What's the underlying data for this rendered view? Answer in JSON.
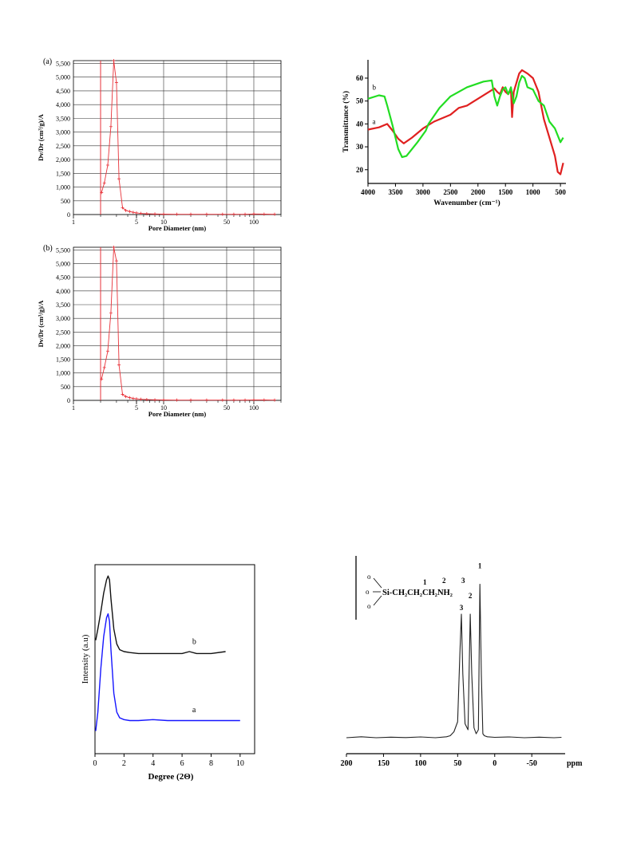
{
  "chart_data": [
    {
      "id": "pore-a",
      "type": "line",
      "panel_label": "(a)",
      "xlabel": "Pore Diameter (nm)",
      "ylabel": "Dv/Dr (cm³/g)/A",
      "xscale": "log",
      "xlim": [
        1,
        200
      ],
      "ylim": [
        0,
        5600
      ],
      "xtick_labels": [
        {
          "v": 1,
          "t": "1"
        },
        {
          "v": 5,
          "t": "5"
        },
        {
          "v": 10,
          "t": "10"
        },
        {
          "v": 50,
          "t": "50"
        },
        {
          "v": 100,
          "t": "100"
        }
      ],
      "x_vlines": [
        2,
        10,
        50,
        100
      ],
      "yticks": [
        0,
        500,
        1000,
        1500,
        2000,
        2500,
        3000,
        3500,
        4000,
        4500,
        5000,
        5500
      ],
      "ytick_labels": [
        "0",
        "500",
        "1,000",
        "1,500",
        "2,000",
        "2,500",
        "3,000",
        "3,500",
        "4,000",
        "4,500",
        "5,000",
        "5,500"
      ],
      "marker_line_x": 2.0,
      "colors": {
        "series": "#e8333a",
        "marker_line": "#e8333a",
        "grid": "#000000"
      },
      "series": [
        {
          "x": [
            2.05,
            2.2,
            2.4,
            2.6,
            2.8,
            3.0,
            3.2,
            3.5,
            3.8,
            4.2,
            4.6,
            5.0,
            5.6,
            6.5,
            8,
            10,
            14,
            20,
            30,
            45,
            60,
            80,
            100,
            130,
            170
          ],
          "y": [
            800,
            1150,
            1800,
            3200,
            5600,
            4800,
            1300,
            250,
            150,
            110,
            80,
            60,
            40,
            30,
            20,
            15,
            10,
            10,
            10,
            10,
            10,
            10,
            20,
            15,
            10
          ]
        }
      ]
    },
    {
      "id": "pore-b",
      "type": "line",
      "panel_label": "(b)",
      "xlabel": "Pore Diameter (nm)",
      "ylabel": "Dv/Dr (cm³/g)/A",
      "xscale": "log",
      "xlim": [
        1,
        200
      ],
      "ylim": [
        0,
        5600
      ],
      "xtick_labels": [
        {
          "v": 1,
          "t": "1"
        },
        {
          "v": 5,
          "t": "5"
        },
        {
          "v": 10,
          "t": "10"
        },
        {
          "v": 50,
          "t": "50"
        },
        {
          "v": 100,
          "t": "100"
        }
      ],
      "x_vlines": [
        2,
        10,
        50,
        100
      ],
      "yticks": [
        0,
        500,
        1000,
        1500,
        2000,
        2500,
        3000,
        3500,
        4000,
        4500,
        5000,
        5500
      ],
      "ytick_labels": [
        "0",
        "500",
        "1,000",
        "1,500",
        "2,000",
        "2,500",
        "3,000",
        "3,500",
        "4,000",
        "4,500",
        "5,000",
        "5,500"
      ],
      "marker_line_x": 2.0,
      "colors": {
        "series": "#e8333a",
        "marker_line": "#e8333a",
        "grid": "#000000"
      },
      "series": [
        {
          "x": [
            2.05,
            2.2,
            2.4,
            2.6,
            2.8,
            3.0,
            3.2,
            3.5,
            3.8,
            4.2,
            4.6,
            5.0,
            5.6,
            6.5,
            8,
            10,
            14,
            20,
            30,
            45,
            60,
            80,
            100,
            130,
            170
          ],
          "y": [
            780,
            1200,
            1800,
            3200,
            5600,
            5100,
            1300,
            220,
            140,
            100,
            70,
            55,
            40,
            30,
            20,
            15,
            10,
            10,
            10,
            10,
            10,
            10,
            15,
            15,
            10
          ]
        }
      ]
    },
    {
      "id": "ftir",
      "type": "line",
      "xlabel": "Wavenumber (cm⁻¹)",
      "ylabel": "Transmittance (%)",
      "xlim": [
        4000,
        400
      ],
      "ylim": [
        14,
        68
      ],
      "xticks": [
        4000,
        3500,
        3000,
        2500,
        2000,
        1500,
        1000,
        500
      ],
      "yticks": [
        20,
        30,
        40,
        50,
        60
      ],
      "series": [
        {
          "name": "a",
          "color": "#e02020",
          "x": [
            4000,
            3800,
            3650,
            3550,
            3450,
            3350,
            3200,
            3000,
            2800,
            2500,
            2350,
            2200,
            2000,
            1800,
            1700,
            1650,
            1600,
            1550,
            1500,
            1450,
            1400,
            1380,
            1350,
            1300,
            1250,
            1200,
            1100,
            1000,
            900,
            800,
            700,
            600,
            550,
            500,
            450
          ],
          "y": [
            37.5,
            38.5,
            40,
            37,
            33.5,
            31.5,
            34,
            38,
            41,
            44,
            47,
            48,
            51,
            54,
            55.5,
            54,
            53,
            56,
            54,
            53,
            55,
            43,
            54,
            58,
            62,
            63.5,
            62,
            60,
            54,
            42,
            34,
            26,
            19,
            18,
            23
          ]
        },
        {
          "name": "b",
          "color": "#22dd22",
          "x": [
            4000,
            3800,
            3700,
            3650,
            3550,
            3450,
            3380,
            3300,
            3100,
            2950,
            2900,
            2700,
            2500,
            2200,
            1900,
            1750,
            1700,
            1650,
            1600,
            1550,
            1500,
            1450,
            1400,
            1350,
            1300,
            1250,
            1200,
            1150,
            1100,
            1000,
            900,
            800,
            700,
            600,
            500,
            450
          ],
          "y": [
            51,
            52.5,
            52,
            48,
            39,
            29,
            25.5,
            26,
            32,
            37,
            40,
            47,
            52,
            56,
            58.5,
            59,
            52,
            48,
            52,
            55,
            56,
            53,
            56,
            49,
            52,
            58,
            61,
            60,
            56,
            55,
            50,
            48,
            41,
            38,
            32,
            34
          ]
        }
      ],
      "labels": [
        {
          "text": "b",
          "x": 3950,
          "y": 55
        },
        {
          "text": "a",
          "x": 3950,
          "y": 40
        }
      ]
    },
    {
      "id": "xrd",
      "type": "line",
      "xlabel": "Degree (2Θ)",
      "ylabel": "Intensity (a.u)",
      "xlim": [
        0,
        11
      ],
      "ylim": [
        0,
        100
      ],
      "xticks": [
        0,
        2,
        4,
        6,
        8,
        10
      ],
      "series": [
        {
          "name": "b",
          "color": "#111111",
          "x": [
            0.05,
            0.2,
            0.4,
            0.6,
            0.8,
            0.9,
            1.0,
            1.1,
            1.3,
            1.5,
            1.7,
            2.0,
            2.4,
            3,
            4,
            5,
            6,
            6.5,
            7,
            8,
            9
          ],
          "y": [
            60,
            66,
            75,
            85,
            92,
            94,
            92,
            82,
            66,
            58,
            55,
            54,
            53.5,
            53,
            53,
            53,
            53,
            54,
            53,
            53,
            54
          ]
        },
        {
          "name": "a",
          "color": "#1515ff",
          "x": [
            0.05,
            0.2,
            0.4,
            0.6,
            0.8,
            0.9,
            1.0,
            1.1,
            1.3,
            1.5,
            1.7,
            2.0,
            2.4,
            3,
            4,
            5,
            6,
            7,
            8,
            10
          ],
          "y": [
            12,
            22,
            45,
            62,
            72,
            74,
            70,
            55,
            32,
            22,
            19,
            18,
            17.5,
            17.5,
            18,
            17.5,
            17.5,
            17.5,
            17.5,
            17.5
          ]
        }
      ],
      "labels": [
        {
          "text": "b",
          "x": 6.7,
          "y": 58
        },
        {
          "text": "a",
          "x": 6.7,
          "y": 22
        }
      ]
    },
    {
      "id": "nmr",
      "type": "line",
      "xlabel": "ppm",
      "xlim": [
        200,
        -95
      ],
      "xticks": [
        200,
        150,
        100,
        50,
        0,
        -50
      ],
      "ylim": [
        0,
        100
      ],
      "structure": {
        "o_top": "o",
        "o_mid": "o",
        "o_bot": "o",
        "main": "Si-CH₂CH₂CH₂NH₂",
        "n1": "1",
        "n2": "2",
        "n3": "3"
      },
      "peak_labels": [
        {
          "text": "1",
          "x": 20,
          "y": 93
        },
        {
          "text": "2",
          "x": 33,
          "y": 78
        },
        {
          "text": "3",
          "x": 45,
          "y": 72
        }
      ],
      "series": [
        {
          "color": "#222222",
          "x": [
            200,
            180,
            160,
            140,
            120,
            100,
            80,
            65,
            60,
            55,
            50,
            47,
            45,
            43,
            40,
            36,
            33,
            31,
            28,
            25,
            22,
            20,
            18,
            16,
            14,
            10,
            0,
            -20,
            -40,
            -60,
            -80,
            -90
          ],
          "y": [
            8,
            8.5,
            8,
            8.3,
            8.1,
            8.4,
            8,
            8.5,
            9,
            11,
            16,
            50,
            70,
            40,
            15,
            12,
            70,
            40,
            13,
            10,
            12,
            85,
            40,
            10,
            9,
            8.5,
            8.2,
            8.4,
            8,
            8.3,
            8,
            8.2
          ]
        }
      ]
    }
  ]
}
